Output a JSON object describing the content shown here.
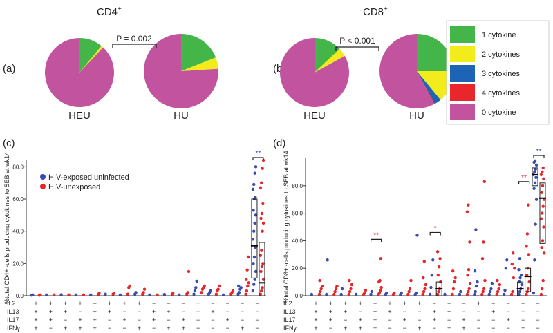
{
  "panel_labels": {
    "a": "(a)",
    "b": "(b)",
    "c": "(c)",
    "d": "(d)"
  },
  "titles": {
    "cd4": "CD4",
    "cd8": "CD8",
    "sup": "+"
  },
  "group_labels": {
    "heu": "HEU",
    "hu": "HU"
  },
  "pvalues": {
    "cd4": "P = 0.002",
    "cd8": "P < 0.001"
  },
  "pie_legend": [
    {
      "label": "1 cytokine",
      "color": "#44b649"
    },
    {
      "label": "2 cytokines",
      "color": "#f2ec1c"
    },
    {
      "label": "3 cytokines",
      "color": "#1e64b4"
    },
    {
      "label": "4 cytokines",
      "color": "#e8262b"
    },
    {
      "label": "0 cytokine",
      "color": "#c2539e"
    }
  ],
  "scatter_legend": [
    {
      "label": "HIV-exposed uninfected",
      "color": "#3b4cb0"
    },
    {
      "label": "HIV-unexposed",
      "color": "#e5262a"
    }
  ],
  "row_labels": [
    "IL2",
    "IL13",
    "IL17",
    "IFNγ"
  ],
  "combos": {
    "IL2": [
      "+",
      "+",
      "+",
      "+",
      "−",
      "+",
      "+",
      "+",
      "−",
      "−",
      "−",
      "+",
      "−",
      "−",
      "−",
      "−"
    ],
    "IL13": [
      "+",
      "+",
      "+",
      "−",
      "+",
      "+",
      "−",
      "−",
      "+",
      "+",
      "−",
      "−",
      "+",
      "−",
      "−",
      "−"
    ],
    "IL17": [
      "+",
      "+",
      "−",
      "+",
      "+",
      "−",
      "+",
      "−",
      "+",
      "−",
      "+",
      "−",
      "−",
      "+",
      "−",
      "−"
    ],
    "IFNγ": [
      "+",
      "−",
      "+",
      "+",
      "+",
      "−",
      "−",
      "+",
      "−",
      "+",
      "+",
      "−",
      "−",
      "−",
      "+",
      "−"
    ]
  },
  "chart_data": [
    {
      "type": "pie",
      "panel": "a",
      "label": "HEU",
      "subset": "CD4+",
      "slices": {
        "1 cytokine": 11,
        "2 cytokines": 1,
        "3 cytokines": 0,
        "4 cytokines": 0,
        "0 cytokine": 88
      }
    },
    {
      "type": "pie",
      "panel": "a",
      "label": "HU",
      "subset": "CD4+",
      "slices": {
        "1 cytokine": 19,
        "2 cytokines": 5,
        "3 cytokines": 0,
        "4 cytokines": 0,
        "0 cytokine": 76
      }
    },
    {
      "type": "pie",
      "panel": "b",
      "label": "HEU",
      "subset": "CD8+",
      "slices": {
        "1 cytokine": 13,
        "2 cytokines": 4,
        "3 cytokines": 0,
        "4 cytokines": 0,
        "0 cytokine": 83
      }
    },
    {
      "type": "pie",
      "panel": "b",
      "label": "HU",
      "subset": "CD8+",
      "slices": {
        "1 cytokine": 25,
        "2 cytokines": 14,
        "3 cytokines": 3,
        "4 cytokines": 0.3,
        "0 cytokine": 57.7
      }
    },
    {
      "type": "scatter",
      "panel": "c",
      "ylabel": "%total CD4+ -cells producing cytokines to SEB at wk14",
      "ylim": [
        0,
        84
      ],
      "yticks": [
        "0.0",
        "20.0",
        "40.0",
        "60.0",
        "80.0"
      ],
      "groups": [
        {
          "heu": [
            0.3,
            0.5
          ],
          "hu": [
            0.3,
            0.5
          ]
        },
        {
          "heu": [
            0.5
          ],
          "hu": [
            0.5
          ]
        },
        {
          "heu": [
            0.6
          ],
          "hu": [
            0.5
          ]
        },
        {
          "heu": [
            0.5
          ],
          "hu": [
            0.5
          ]
        },
        {
          "heu": [
            0.5
          ],
          "hu": [
            1,
            1.5
          ]
        },
        {
          "heu": [
            1
          ],
          "hu": [
            1,
            1.5
          ]
        },
        {
          "heu": [
            0.5
          ],
          "hu": [
            1,
            5,
            6
          ]
        },
        {
          "heu": [
            1,
            2
          ],
          "hu": [
            1,
            2,
            4
          ]
        },
        {
          "heu": [
            0.5
          ],
          "hu": [
            0.5
          ]
        },
        {
          "heu": [
            0.8
          ],
          "hu": [
            1,
            1.5
          ]
        },
        {
          "heu": [
            0.5
          ],
          "hu": [
            1,
            2,
            15
          ]
        },
        {
          "heu": [
            1,
            3,
            5,
            9
          ],
          "hu": [
            2,
            4,
            5,
            6
          ]
        },
        {
          "heu": [
            1,
            2,
            3
          ],
          "hu": [
            1,
            3,
            4,
            6
          ]
        },
        {
          "heu": [
            0.5
          ],
          "hu": [
            1,
            2,
            3
          ]
        },
        {
          "heu": [
            1,
            2,
            4,
            5,
            6
          ],
          "hu": [
            1,
            3,
            6,
            8,
            10,
            16,
            24
          ]
        },
        {
          "heu": [
            3,
            7,
            10,
            15,
            20,
            24,
            30,
            35,
            40,
            45,
            50,
            53,
            60,
            61,
            66,
            69,
            76,
            80
          ],
          "hu": [
            1,
            3,
            5,
            10,
            15,
            18,
            20,
            25,
            28,
            40,
            45,
            48,
            51,
            57,
            67,
            70,
            79,
            84
          ],
          "box_heu": {
            "median": 31,
            "q1": 11,
            "q3": 60
          },
          "box_hu": {
            "median": 8,
            "q1": 0,
            "q3": 33
          },
          "significance": "**",
          "sig_color": "#3b4cb0"
        }
      ]
    },
    {
      "type": "scatter",
      "panel": "d",
      "ylabel": "%total CD8+ -cells producing cytokines to SEB at wk14",
      "ylim": [
        0,
        100
      ],
      "yticks": [
        "0.0",
        "20.0",
        "40.0",
        "60.0",
        "80.0"
      ],
      "groups": [
        {
          "heu": [
            1
          ],
          "hu": [
            1,
            3,
            5,
            7,
            11
          ]
        },
        {
          "heu": [
            1,
            26
          ],
          "hu": [
            1,
            3,
            5,
            7
          ]
        },
        {
          "heu": [
            1,
            5
          ],
          "hu": [
            1,
            3,
            5,
            8,
            11
          ]
        },
        {
          "heu": [
            1
          ],
          "hu": [
            1,
            2,
            4
          ]
        },
        {
          "heu": [
            1,
            3
          ],
          "hu": [
            1,
            2,
            4,
            6,
            10,
            11,
            27
          ],
          "significance": "**",
          "sig_color": "#e5262a"
        },
        {
          "heu": [
            1,
            2
          ],
          "hu": [
            1,
            2
          ]
        },
        {
          "heu": [
            1,
            2
          ],
          "hu": [
            1,
            3,
            5,
            11
          ]
        },
        {
          "heu": [
            1,
            2,
            44
          ],
          "hu": [
            1,
            3,
            5,
            8,
            13,
            25
          ]
        },
        {
          "heu": [
            1,
            6,
            15,
            26
          ],
          "hu": [
            1,
            3,
            5,
            10,
            15,
            21,
            27,
            32
          ],
          "box_hu": {
            "median": 5,
            "q1": 0,
            "q3": 10
          },
          "significance": "*",
          "sig_color": "#e5262a"
        },
        {
          "heu": [
            1
          ],
          "hu": [
            1,
            5,
            10,
            13,
            18
          ]
        },
        {
          "heu": [
            1,
            3
          ],
          "hu": [
            1,
            3,
            5,
            9,
            15,
            19,
            39,
            61,
            66
          ]
        },
        {
          "heu": [
            1,
            3,
            7,
            10,
            18,
            48
          ],
          "hu": [
            1,
            3,
            5,
            11,
            27,
            39,
            83
          ]
        },
        {
          "heu": [
            1,
            3,
            5,
            9
          ],
          "hu": [
            1,
            3,
            5,
            8,
            11
          ]
        },
        {
          "heu": [
            1,
            4,
            20,
            26
          ],
          "hu": [
            1,
            3,
            13,
            20,
            23,
            31
          ]
        },
        {
          "heu": [
            1,
            3,
            5,
            8,
            10,
            13,
            15,
            19,
            27
          ],
          "hu": [
            1,
            3,
            5,
            10,
            15,
            20,
            30,
            36,
            45,
            66
          ],
          "box_heu": {
            "median": 5,
            "q1": 0,
            "q3": 10
          },
          "box_hu": {
            "median": 14,
            "q1": 3,
            "q3": 20
          },
          "significance": "**",
          "sig_color": "#e5262a"
        },
        {
          "heu": [
            2,
            26,
            52,
            70,
            78,
            82,
            86,
            88,
            90,
            92,
            95,
            97,
            98
          ],
          "hu": [
            1,
            5,
            11,
            31,
            35,
            40,
            50,
            56,
            60,
            65,
            70,
            75,
            80,
            85,
            88,
            90,
            93
          ],
          "box_heu": {
            "median": 88,
            "q1": 80,
            "q3": 93
          },
          "box_hu": {
            "median": 71,
            "q1": 38,
            "q3": 82
          },
          "significance": "**",
          "sig_color": "#3b4cb0"
        }
      ]
    }
  ]
}
